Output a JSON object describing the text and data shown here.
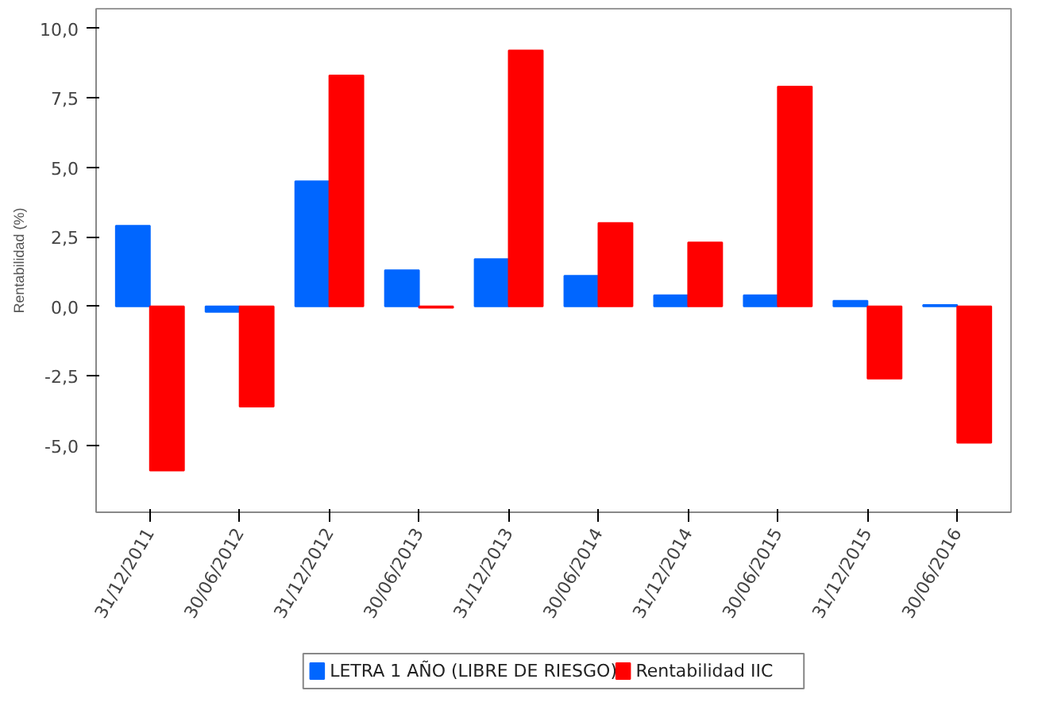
{
  "chart_data": {
    "type": "bar",
    "ylabel": "Rentabilidad (%)",
    "categories": [
      "31/12/2011",
      "30/06/2012",
      "31/12/2012",
      "30/06/2013",
      "31/12/2013",
      "30/06/2014",
      "31/12/2014",
      "30/06/2015",
      "31/12/2015",
      "30/06/2016"
    ],
    "series": [
      {
        "name": "LETRA 1 AÑO (LIBRE DE RIESGO)",
        "color": "#0066ff",
        "values": [
          2.9,
          -0.2,
          4.5,
          1.3,
          1.7,
          1.1,
          0.4,
          0.4,
          0.2,
          0.05
        ]
      },
      {
        "name": "Rentabilidad IIC",
        "color": "#ff0000",
        "values": [
          -5.9,
          -3.6,
          8.3,
          -0.05,
          9.2,
          3.0,
          2.3,
          7.9,
          -2.6,
          -4.9
        ]
      }
    ],
    "ylim": [
      -7.4,
      10.7
    ],
    "yticks": [
      {
        "value": -5,
        "label": "-5,0"
      },
      {
        "value": -2.5,
        "label": "-2,5"
      },
      {
        "value": 0,
        "label": "0,0"
      },
      {
        "value": 2.5,
        "label": "2,5"
      },
      {
        "value": 5,
        "label": "5,0"
      },
      {
        "value": 7.5,
        "label": "7,5"
      },
      {
        "value": 10,
        "label": "10,0"
      }
    ],
    "grid": false,
    "legend": "bottom"
  }
}
